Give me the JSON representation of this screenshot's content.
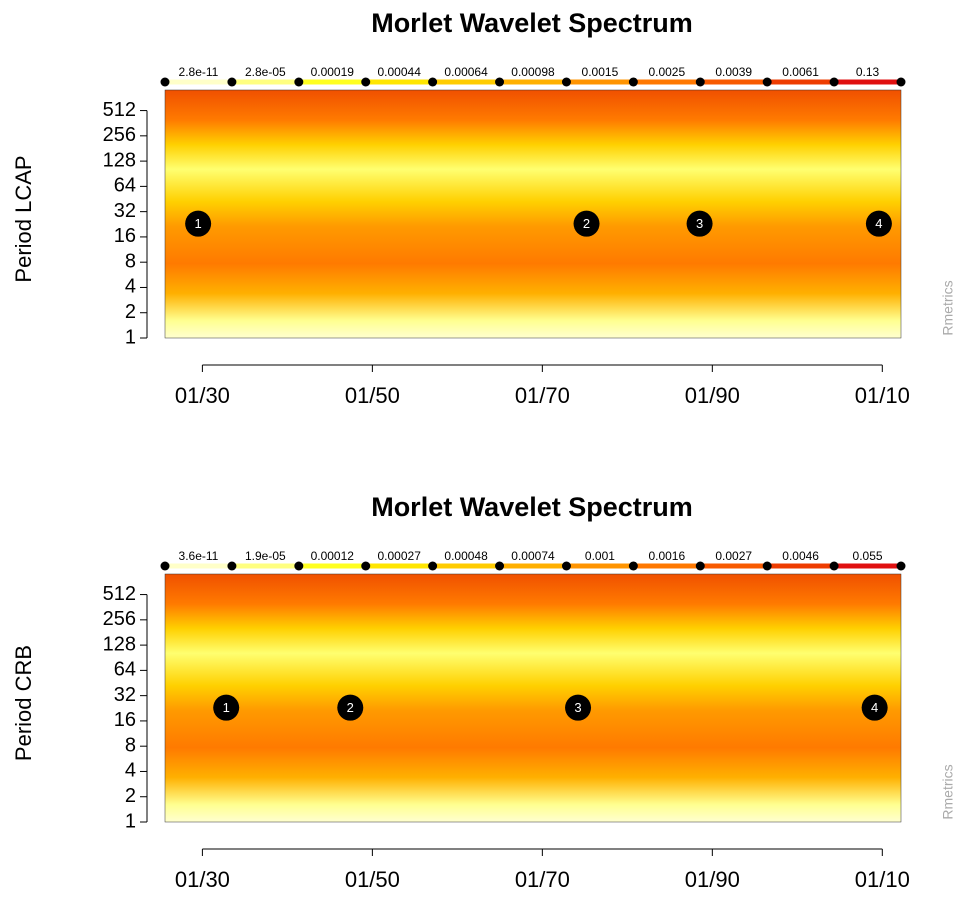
{
  "chart_data": [
    {
      "type": "heatmap",
      "title": "Morlet Wavelet Spectrum",
      "ylabel": "Period LCAP",
      "source": "Rmetrics",
      "log_y": true,
      "ylim": [
        1,
        900
      ],
      "yticks": [
        1,
        2,
        4,
        8,
        16,
        32,
        64,
        128,
        256,
        512
      ],
      "xlim": [
        1925.6,
        2012.2
      ],
      "xticks": [
        {
          "value": 1930,
          "label": "01/30"
        },
        {
          "value": 1950,
          "label": "01/50"
        },
        {
          "value": 1970,
          "label": "01/70"
        },
        {
          "value": 1990,
          "label": "01/90"
        },
        {
          "value": 2010,
          "label": "01/10"
        }
      ],
      "legend": {
        "labels": [
          "2.8e-11",
          "2.8e-05",
          "0.00019",
          "0.00044",
          "0.00064",
          "0.00098",
          "0.0015",
          "0.0025",
          "0.0039",
          "0.0061",
          "0.13"
        ],
        "colors": [
          "#ffffc8",
          "#ffff80",
          "#ffff20",
          "#ffe600",
          "#ffcc00",
          "#ffb000",
          "#ff9400",
          "#ff7800",
          "#f85a00",
          "#ee3c00",
          "#e01010"
        ]
      },
      "annotations": [
        {
          "label": "1",
          "x": 1929.5,
          "y": 23
        },
        {
          "label": "2",
          "x": 1975.2,
          "y": 23
        },
        {
          "label": "3",
          "x": 1988.5,
          "y": 23
        },
        {
          "label": "4",
          "x": 2009.6,
          "y": 23
        }
      ]
    },
    {
      "type": "heatmap",
      "title": "Morlet Wavelet Spectrum",
      "ylabel": "Period CRB",
      "source": "Rmetrics",
      "log_y": true,
      "ylim": [
        1,
        900
      ],
      "yticks": [
        1,
        2,
        4,
        8,
        16,
        32,
        64,
        128,
        256,
        512
      ],
      "xlim": [
        1925.6,
        2012.2
      ],
      "xticks": [
        {
          "value": 1930,
          "label": "01/30"
        },
        {
          "value": 1950,
          "label": "01/50"
        },
        {
          "value": 1970,
          "label": "01/70"
        },
        {
          "value": 1990,
          "label": "01/90"
        },
        {
          "value": 2010,
          "label": "01/10"
        }
      ],
      "legend": {
        "labels": [
          "3.6e-11",
          "1.9e-05",
          "0.00012",
          "0.00027",
          "0.00048",
          "0.00074",
          "0.001",
          "0.0016",
          "0.0027",
          "0.0046",
          "0.055"
        ],
        "colors": [
          "#ffffc8",
          "#ffff80",
          "#ffff20",
          "#ffe600",
          "#ffcc00",
          "#ffb000",
          "#ff9400",
          "#ff7800",
          "#f85a00",
          "#ee3c00",
          "#e01010"
        ]
      },
      "annotations": [
        {
          "label": "1",
          "x": 1932.8,
          "y": 23
        },
        {
          "label": "2",
          "x": 1947.4,
          "y": 23
        },
        {
          "label": "3",
          "x": 1974.2,
          "y": 23
        },
        {
          "label": "4",
          "x": 2009.1,
          "y": 23
        }
      ]
    }
  ]
}
